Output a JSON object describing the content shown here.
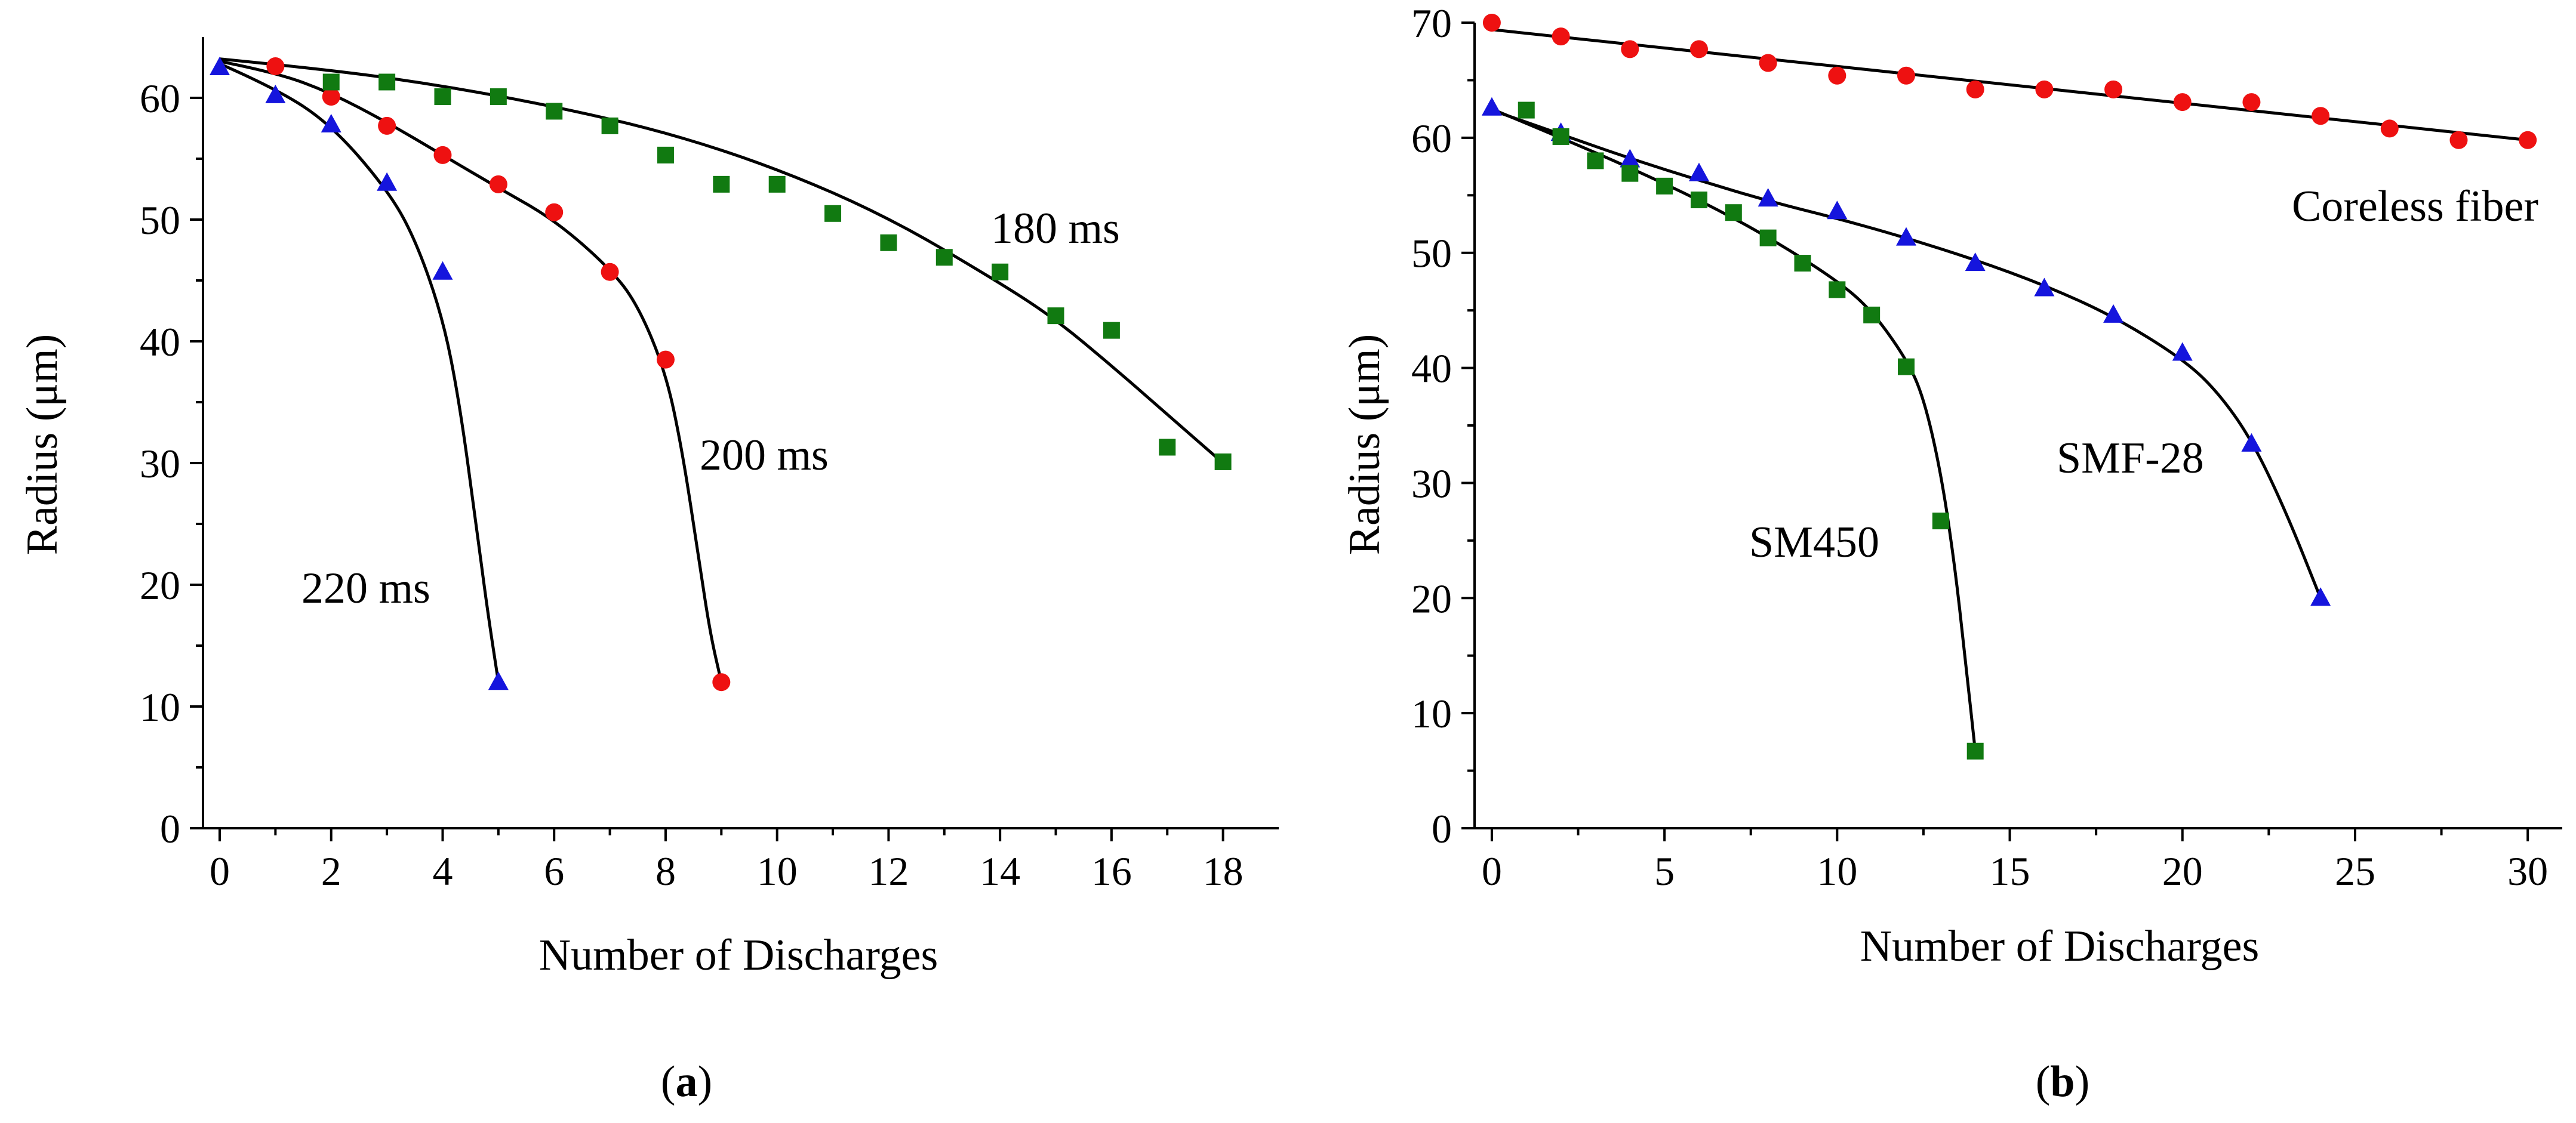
{
  "colors": {
    "red": "#ee1111",
    "blue": "#1515dd",
    "green": "#117a11",
    "line": "#000000"
  },
  "chart_data": [
    {
      "id": "a",
      "type": "scatter",
      "panel_label": "a",
      "xlabel": "Number of Discharges",
      "ylabel": "Radius (μm)",
      "xlim": [
        -0.3,
        19
      ],
      "ylim": [
        0,
        65
      ],
      "xticks": [
        0,
        2,
        4,
        6,
        8,
        10,
        12,
        14,
        16,
        18
      ],
      "yticks": [
        0,
        10,
        20,
        30,
        40,
        50,
        60
      ],
      "series": [
        {
          "name": "220 ms",
          "marker": "triangle",
          "color": "blue",
          "points": [
            [
              0,
              62.5
            ],
            [
              1,
              60.2
            ],
            [
              2,
              57.8
            ],
            [
              3,
              53
            ],
            [
              4,
              45.7
            ],
            [
              5,
              12
            ]
          ],
          "fit": [
            [
              0,
              62.8
            ],
            [
              1,
              60.8
            ],
            [
              2,
              57.8
            ],
            [
              3,
              52.5
            ],
            [
              3.5,
              48.5
            ],
            [
              4,
              42
            ],
            [
              4.3,
              35
            ],
            [
              4.6,
              25
            ],
            [
              4.8,
              18
            ],
            [
              5,
              12
            ]
          ]
        },
        {
          "name": "200 ms",
          "marker": "circle",
          "color": "red",
          "points": [
            [
              1,
              62.6
            ],
            [
              2,
              60.1
            ],
            [
              3,
              57.7
            ],
            [
              4,
              55.3
            ],
            [
              5,
              52.9
            ],
            [
              6,
              50.6
            ],
            [
              7,
              45.7
            ],
            [
              8,
              38.5
            ],
            [
              9,
              12
            ]
          ],
          "fit": [
            [
              0,
              63
            ],
            [
              1,
              62.1
            ],
            [
              2,
              60.4
            ],
            [
              3,
              58
            ],
            [
              4,
              55.3
            ],
            [
              5,
              52.6
            ],
            [
              6,
              50
            ],
            [
              7,
              46
            ],
            [
              7.5,
              43
            ],
            [
              8,
              37.5
            ],
            [
              8.3,
              31
            ],
            [
              8.6,
              22
            ],
            [
              8.8,
              16
            ],
            [
              9,
              12
            ]
          ]
        },
        {
          "name": "180 ms",
          "marker": "square",
          "color": "green",
          "points": [
            [
              2,
              61.3
            ],
            [
              3,
              61.3
            ],
            [
              4,
              60.1
            ],
            [
              5,
              60.1
            ],
            [
              6,
              58.9
            ],
            [
              7,
              57.7
            ],
            [
              8,
              55.3
            ],
            [
              9,
              52.9
            ],
            [
              10,
              52.9
            ],
            [
              11,
              50.5
            ],
            [
              12,
              48.1
            ],
            [
              13,
              46.9
            ],
            [
              14,
              45.7
            ],
            [
              15,
              42.1
            ],
            [
              16,
              40.9
            ],
            [
              17,
              31.3
            ],
            [
              18,
              30.1
            ]
          ],
          "fit": [
            [
              0,
              63.2
            ],
            [
              2,
              62.3
            ],
            [
              4,
              61
            ],
            [
              6,
              59.3
            ],
            [
              8,
              57.2
            ],
            [
              10,
              54.2
            ],
            [
              12,
              50.2
            ],
            [
              14,
              44.8
            ],
            [
              15,
              41.8
            ],
            [
              16,
              38
            ],
            [
              17,
              34
            ],
            [
              18,
              30
            ]
          ]
        }
      ],
      "annotations": [
        {
          "text": "220 ms",
          "near": "left, below blue curve"
        },
        {
          "text": "200 ms",
          "near": "right of red curve"
        },
        {
          "text": "180 ms",
          "near": "above green curve"
        }
      ]
    },
    {
      "id": "b",
      "type": "scatter",
      "panel_label": "b",
      "xlabel": "Number of Discharges",
      "ylabel": "Radius (μm)",
      "xlim": [
        -0.5,
        31
      ],
      "ylim": [
        0,
        70
      ],
      "xticks": [
        0,
        5,
        10,
        15,
        20,
        25,
        30
      ],
      "yticks": [
        0,
        10,
        20,
        30,
        40,
        50,
        60,
        70
      ],
      "series": [
        {
          "name": "Coreless fiber",
          "marker": "circle",
          "color": "red",
          "points": [
            [
              0,
              70
            ],
            [
              2,
              68.8
            ],
            [
              4,
              67.7
            ],
            [
              6,
              67.7
            ],
            [
              8,
              66.5
            ],
            [
              10,
              65.4
            ],
            [
              12,
              65.4
            ],
            [
              14,
              64.2
            ],
            [
              16,
              64.2
            ],
            [
              18,
              64.2
            ],
            [
              20,
              63.1
            ],
            [
              22,
              63.1
            ],
            [
              24,
              61.9
            ],
            [
              26,
              60.8
            ],
            [
              28,
              59.8
            ],
            [
              30,
              59.8
            ]
          ],
          "fit": [
            [
              0,
              69.4
            ],
            [
              30,
              59.8
            ]
          ]
        },
        {
          "name": "SMF-28",
          "marker": "triangle",
          "color": "blue",
          "points": [
            [
              0,
              62.6
            ],
            [
              2,
              60.4
            ],
            [
              4,
              58.1
            ],
            [
              6,
              56.9
            ],
            [
              8,
              54.7
            ],
            [
              10,
              53.6
            ],
            [
              12,
              51.3
            ],
            [
              14,
              49.1
            ],
            [
              16,
              46.9
            ],
            [
              18,
              44.6
            ],
            [
              20,
              41.3
            ],
            [
              22,
              33.4
            ],
            [
              24,
              20
            ]
          ],
          "fit": [
            [
              0,
              62.4
            ],
            [
              2,
              60.3
            ],
            [
              4,
              58.2
            ],
            [
              6,
              56.3
            ],
            [
              8,
              54.5
            ],
            [
              10,
              53
            ],
            [
              12,
              51.3
            ],
            [
              14,
              49.4
            ],
            [
              16,
              47.2
            ],
            [
              18,
              44.5
            ],
            [
              20,
              40.8
            ],
            [
              21,
              38
            ],
            [
              22,
              33.8
            ],
            [
              23,
              27.5
            ],
            [
              24,
              20
            ]
          ]
        },
        {
          "name": "SM450",
          "marker": "square",
          "color": "green",
          "points": [
            [
              1,
              62.4
            ],
            [
              2,
              60.1
            ],
            [
              3,
              58
            ],
            [
              4,
              56.9
            ],
            [
              5,
              55.8
            ],
            [
              6,
              54.6
            ],
            [
              7,
              53.5
            ],
            [
              8,
              51.3
            ],
            [
              9,
              49.1
            ],
            [
              10,
              46.8
            ],
            [
              11,
              44.6
            ],
            [
              12,
              40.1
            ],
            [
              13,
              26.7
            ],
            [
              14,
              6.7
            ]
          ],
          "fit": [
            [
              0,
              62.5
            ],
            [
              2,
              60
            ],
            [
              4,
              57.4
            ],
            [
              6,
              54.6
            ],
            [
              8,
              51.4
            ],
            [
              10,
              47.6
            ],
            [
              11,
              45
            ],
            [
              12,
              40.8
            ],
            [
              12.5,
              37.5
            ],
            [
              13,
              31
            ],
            [
              13.4,
              23
            ],
            [
              13.7,
              15
            ],
            [
              14,
              6.7
            ]
          ]
        }
      ],
      "annotations": [
        {
          "text": "Coreless fiber",
          "near": "right, below red line"
        },
        {
          "text": "SMF-28",
          "near": "left of blue curve end"
        },
        {
          "text": "SM450",
          "near": "left of green curve end"
        }
      ]
    }
  ]
}
